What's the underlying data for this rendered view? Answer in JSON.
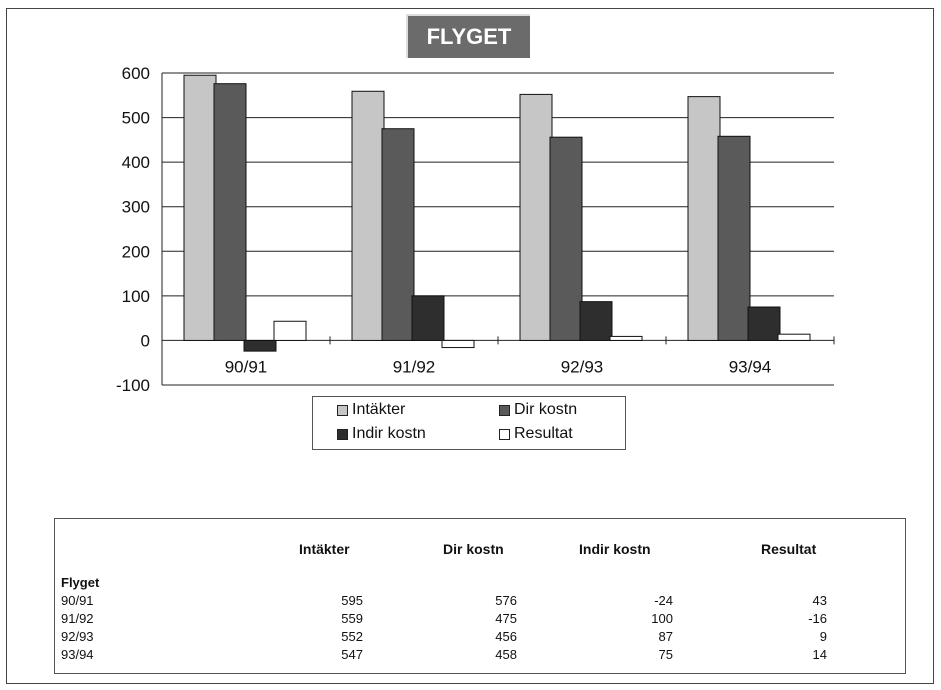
{
  "chart_data": {
    "type": "bar",
    "title": "FLYGET",
    "categories": [
      "90/91",
      "91/92",
      "92/93",
      "93/94"
    ],
    "series": [
      {
        "name": "Intäkter",
        "values": [
          595,
          559,
          552,
          547
        ],
        "color": "#c6c6c6"
      },
      {
        "name": "Dir kostn",
        "values": [
          576,
          475,
          456,
          458
        ],
        "color": "#5a5a5a"
      },
      {
        "name": "Indir kostn",
        "values": [
          -24,
          100,
          87,
          75
        ],
        "color": "#2e2e2e"
      },
      {
        "name": "Resultat",
        "values": [
          43,
          -16,
          9,
          14
        ],
        "color": "#ffffff"
      }
    ],
    "ylim": [
      -100,
      600
    ],
    "yticks": [
      "600",
      "500",
      "400",
      "300",
      "200",
      "100",
      "0",
      "-100"
    ],
    "grid": true,
    "legend_position": "bottom"
  },
  "table": {
    "headers": [
      "Intäkter",
      "Dir  kostn",
      "Indir kostn",
      "Resultat"
    ],
    "group_label": "Flyget",
    "rows": [
      {
        "label": "90/91",
        "values": [
          "595",
          "576",
          "-24",
          "43"
        ]
      },
      {
        "label": "91/92",
        "values": [
          "559",
          "475",
          "100",
          "-16"
        ]
      },
      {
        "label": "92/93",
        "values": [
          "552",
          "456",
          "87",
          "9"
        ]
      },
      {
        "label": "93/94",
        "values": [
          "547",
          "458",
          "75",
          "14"
        ]
      }
    ]
  }
}
